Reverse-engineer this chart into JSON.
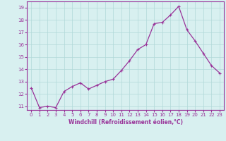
{
  "x": [
    0,
    1,
    2,
    3,
    4,
    5,
    6,
    7,
    8,
    9,
    10,
    11,
    12,
    13,
    14,
    15,
    16,
    17,
    18,
    19,
    20,
    21,
    22,
    23
  ],
  "y": [
    12.5,
    10.9,
    11.0,
    10.9,
    12.2,
    12.6,
    12.9,
    12.4,
    12.7,
    13.0,
    13.2,
    13.9,
    14.7,
    15.6,
    16.0,
    17.7,
    17.8,
    18.4,
    19.1,
    17.2,
    16.3,
    15.3,
    14.3,
    13.7
  ],
  "line_color": "#993399",
  "marker": "+",
  "marker_size": 3,
  "marker_linewidth": 0.8,
  "line_width": 0.9,
  "bg_color": "#d8f0f0",
  "grid_color": "#b0d8d8",
  "xlabel": "Windchill (Refroidissement éolien,°C)",
  "xlabel_color": "#993399",
  "tick_color": "#993399",
  "label_color": "#993399",
  "ylim": [
    10.7,
    19.5
  ],
  "yticks": [
    11,
    12,
    13,
    14,
    15,
    16,
    17,
    18,
    19
  ],
  "xlim": [
    -0.5,
    23.5
  ],
  "xticks": [
    0,
    1,
    2,
    3,
    4,
    5,
    6,
    7,
    8,
    9,
    10,
    11,
    12,
    13,
    14,
    15,
    16,
    17,
    18,
    19,
    20,
    21,
    22,
    23
  ],
  "tick_fontsize": 5,
  "xlabel_fontsize": 5.5,
  "ylabel_fontsize": 5
}
